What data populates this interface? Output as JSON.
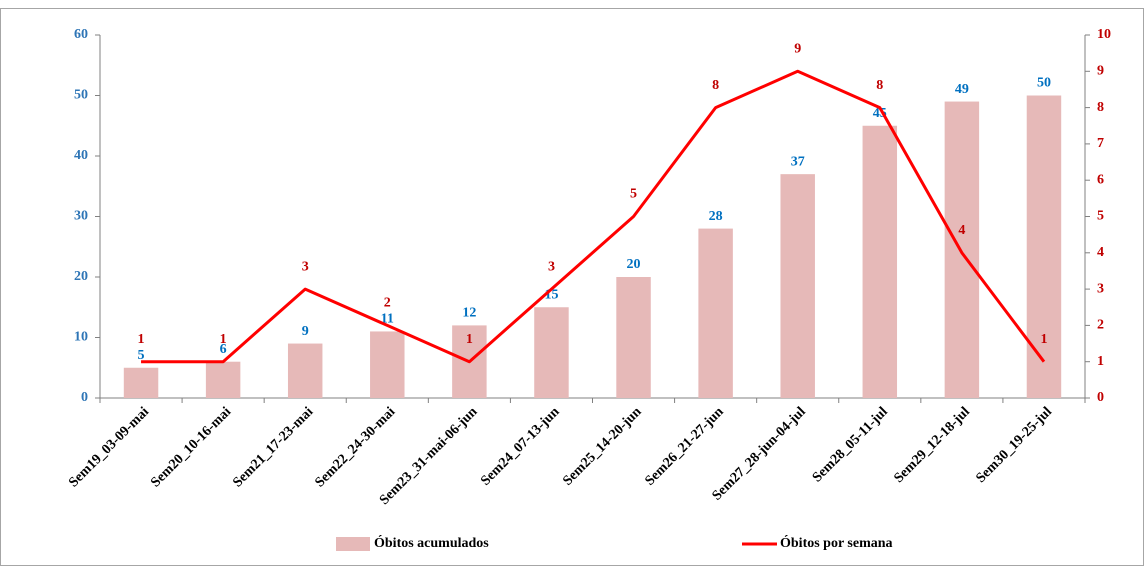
{
  "chart_data": {
    "type": "bar",
    "categories": [
      "Sem19_03-09-mai",
      "Sem20_10-16-mai",
      "Sem21_17-23-mai",
      "Sem22_24-30-mai",
      "Sem23_31-mai-06-jun",
      "Sem24_07-13-jun",
      "Sem25_14-20-jun",
      "Sem26_21-27-jun",
      "Sem27_28-jun-04-jul",
      "Sem28_05-11-jul",
      "Sem29_12-18-jul",
      "Sem30_19-25-jul"
    ],
    "series": [
      {
        "name": "Óbitos acumulados",
        "type": "bar",
        "color": "#e6b9b8",
        "label_color": "#0070c0",
        "values": [
          5,
          6,
          9,
          11,
          12,
          15,
          20,
          28,
          37,
          45,
          49,
          50
        ]
      },
      {
        "name": "Óbitos por semana",
        "type": "line",
        "axis": "y2",
        "color": "#ff0000",
        "label_color": "#c00000",
        "values": [
          1,
          1,
          3,
          2,
          1,
          3,
          5,
          8,
          9,
          8,
          4,
          1
        ]
      }
    ],
    "ylim": [
      0,
      60
    ],
    "yticks": [
      0,
      10,
      20,
      30,
      40,
      50,
      60
    ],
    "ytick_color": "#2e75b6",
    "y2lim": [
      0,
      10
    ],
    "y2ticks": [
      0,
      1,
      2,
      3,
      4,
      5,
      6,
      7,
      8,
      9,
      10
    ],
    "y2tick_color": "#c00000",
    "legend": "bottom",
    "grid": false
  }
}
